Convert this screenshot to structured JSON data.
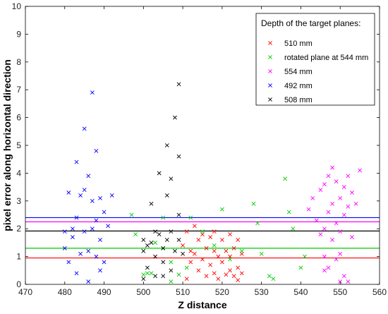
{
  "chart_data": {
    "type": "scatter",
    "xlabel": "Z distance",
    "ylabel": "pixel error along horizontal direction",
    "xlim": [
      470,
      560
    ],
    "ylim": [
      0,
      10
    ],
    "xticks": [
      470,
      480,
      490,
      500,
      510,
      520,
      530,
      540,
      550,
      560
    ],
    "yticks": [
      0,
      1,
      2,
      3,
      4,
      5,
      6,
      7,
      8,
      9,
      10
    ],
    "grid": false,
    "legend": {
      "title": "Depth of the target planes:",
      "placement": "top-right"
    },
    "series": [
      {
        "name": "510 mm",
        "color": "#ff0000",
        "mean": 0.95,
        "points": [
          [
            511,
            1.9
          ],
          [
            512,
            1.2
          ],
          [
            513,
            2.1
          ],
          [
            513,
            1.1
          ],
          [
            514,
            1.6
          ],
          [
            514,
            0.5
          ],
          [
            515,
            1.8
          ],
          [
            515,
            0.9
          ],
          [
            516,
            1.3
          ],
          [
            516,
            0.3
          ],
          [
            517,
            1.7
          ],
          [
            517,
            0.7
          ],
          [
            518,
            1.2
          ],
          [
            518,
            0.4
          ],
          [
            519,
            1.0
          ],
          [
            519,
            0.2
          ],
          [
            520,
            1.6
          ],
          [
            520,
            0.8
          ],
          [
            521,
            1.2
          ],
          [
            521,
            0.35
          ],
          [
            522,
            1.8
          ],
          [
            522,
            1.0
          ],
          [
            523,
            1.3
          ],
          [
            523,
            0.3
          ],
          [
            524,
            1.6
          ],
          [
            524,
            0.6
          ],
          [
            525,
            1.1
          ],
          [
            525,
            0.4
          ],
          [
            512,
            0.8
          ],
          [
            510,
            1.4
          ],
          [
            511,
            0.2
          ],
          [
            518,
            1.9
          ],
          [
            522,
            0.5
          ],
          [
            524,
            0.15
          ]
        ]
      },
      {
        "name": "rotated plane at 544 mm",
        "color": "#00cc00",
        "mean": 1.3,
        "points": [
          [
            497,
            2.5
          ],
          [
            498,
            1.8
          ],
          [
            500,
            0.35
          ],
          [
            501,
            0.4
          ],
          [
            503,
            1.5
          ],
          [
            505,
            1.3
          ],
          [
            505,
            2.4
          ],
          [
            507,
            0.8
          ],
          [
            509,
            0.35
          ],
          [
            512,
            2.4
          ],
          [
            515,
            1.9
          ],
          [
            518,
            1.4
          ],
          [
            520,
            2.7
          ],
          [
            522,
            0.9
          ],
          [
            525,
            1.2
          ],
          [
            528,
            2.9
          ],
          [
            529,
            2.2
          ],
          [
            530,
            1.1
          ],
          [
            532,
            0.3
          ],
          [
            533,
            0.2
          ],
          [
            536,
            3.8
          ],
          [
            537,
            2.6
          ],
          [
            538,
            2.0
          ],
          [
            540,
            0.6
          ],
          [
            541,
            1.0
          ],
          [
            507,
            0.1
          ],
          [
            502,
            0.4
          ],
          [
            511,
            0.6
          ]
        ]
      },
      {
        "name": "554 mm",
        "color": "#ff00ff",
        "mean": 2.25,
        "points": [
          [
            542,
            2.7
          ],
          [
            543,
            3.1
          ],
          [
            544,
            2.3
          ],
          [
            545,
            3.4
          ],
          [
            545,
            1.8
          ],
          [
            546,
            3.6
          ],
          [
            546,
            2.0
          ],
          [
            546,
            1.0
          ],
          [
            547,
            3.9
          ],
          [
            547,
            2.6
          ],
          [
            547,
            0.6
          ],
          [
            548,
            4.2
          ],
          [
            548,
            2.9
          ],
          [
            548,
            1.6
          ],
          [
            549,
            3.7
          ],
          [
            549,
            2.2
          ],
          [
            549,
            0.9
          ],
          [
            550,
            3.1
          ],
          [
            550,
            1.9
          ],
          [
            550,
            1.1
          ],
          [
            551,
            3.5
          ],
          [
            551,
            2.5
          ],
          [
            551,
            0.3
          ],
          [
            552,
            3.9
          ],
          [
            552,
            2.8
          ],
          [
            553,
            3.3
          ],
          [
            553,
            1.7
          ],
          [
            554,
            2.9
          ],
          [
            555,
            4.1
          ],
          [
            552,
            0.1
          ],
          [
            546,
            0.5
          ],
          [
            550,
            0.1
          ]
        ]
      },
      {
        "name": "492 mm",
        "color": "#0000ff",
        "mean": 2.4,
        "points": [
          [
            480,
            1.9
          ],
          [
            480,
            1.3
          ],
          [
            481,
            3.3
          ],
          [
            481,
            0.8
          ],
          [
            482,
            2.0
          ],
          [
            482,
            1.7
          ],
          [
            483,
            4.4
          ],
          [
            483,
            2.4
          ],
          [
            483,
            0.4
          ],
          [
            484,
            3.2
          ],
          [
            484,
            1.1
          ],
          [
            485,
            5.6
          ],
          [
            485,
            1.9
          ],
          [
            485,
            3.4
          ],
          [
            486,
            3.9
          ],
          [
            486,
            1.2
          ],
          [
            486,
            0.1
          ],
          [
            487,
            6.9
          ],
          [
            487,
            3.0
          ],
          [
            487,
            2.0
          ],
          [
            488,
            4.8
          ],
          [
            488,
            2.3
          ],
          [
            488,
            1.0
          ],
          [
            489,
            3.1
          ],
          [
            489,
            1.6
          ],
          [
            490,
            2.6
          ],
          [
            490,
            0.8
          ],
          [
            491,
            2.1
          ],
          [
            492,
            3.2
          ],
          [
            489,
            0.5
          ]
        ]
      },
      {
        "name": "508 mm",
        "color": "#000000",
        "mean": 1.92,
        "points": [
          [
            500,
            1.6
          ],
          [
            500,
            1.2
          ],
          [
            501,
            1.4
          ],
          [
            501,
            0.6
          ],
          [
            502,
            2.9
          ],
          [
            502,
            1.5
          ],
          [
            503,
            1.0
          ],
          [
            503,
            0.3
          ],
          [
            504,
            4.0
          ],
          [
            504,
            1.8
          ],
          [
            505,
            1.3
          ],
          [
            505,
            0.8
          ],
          [
            506,
            5.0
          ],
          [
            506,
            3.2
          ],
          [
            506,
            1.6
          ],
          [
            507,
            3.8
          ],
          [
            507,
            1.9
          ],
          [
            507,
            0.5
          ],
          [
            508,
            6.0
          ],
          [
            508,
            1.2
          ],
          [
            509,
            7.2
          ],
          [
            509,
            4.6
          ],
          [
            509,
            2.5
          ],
          [
            509,
            1.6
          ],
          [
            510,
            1.1
          ],
          [
            505,
            0.3
          ],
          [
            503,
            1.9
          ],
          [
            500,
            0.2
          ]
        ]
      }
    ]
  }
}
